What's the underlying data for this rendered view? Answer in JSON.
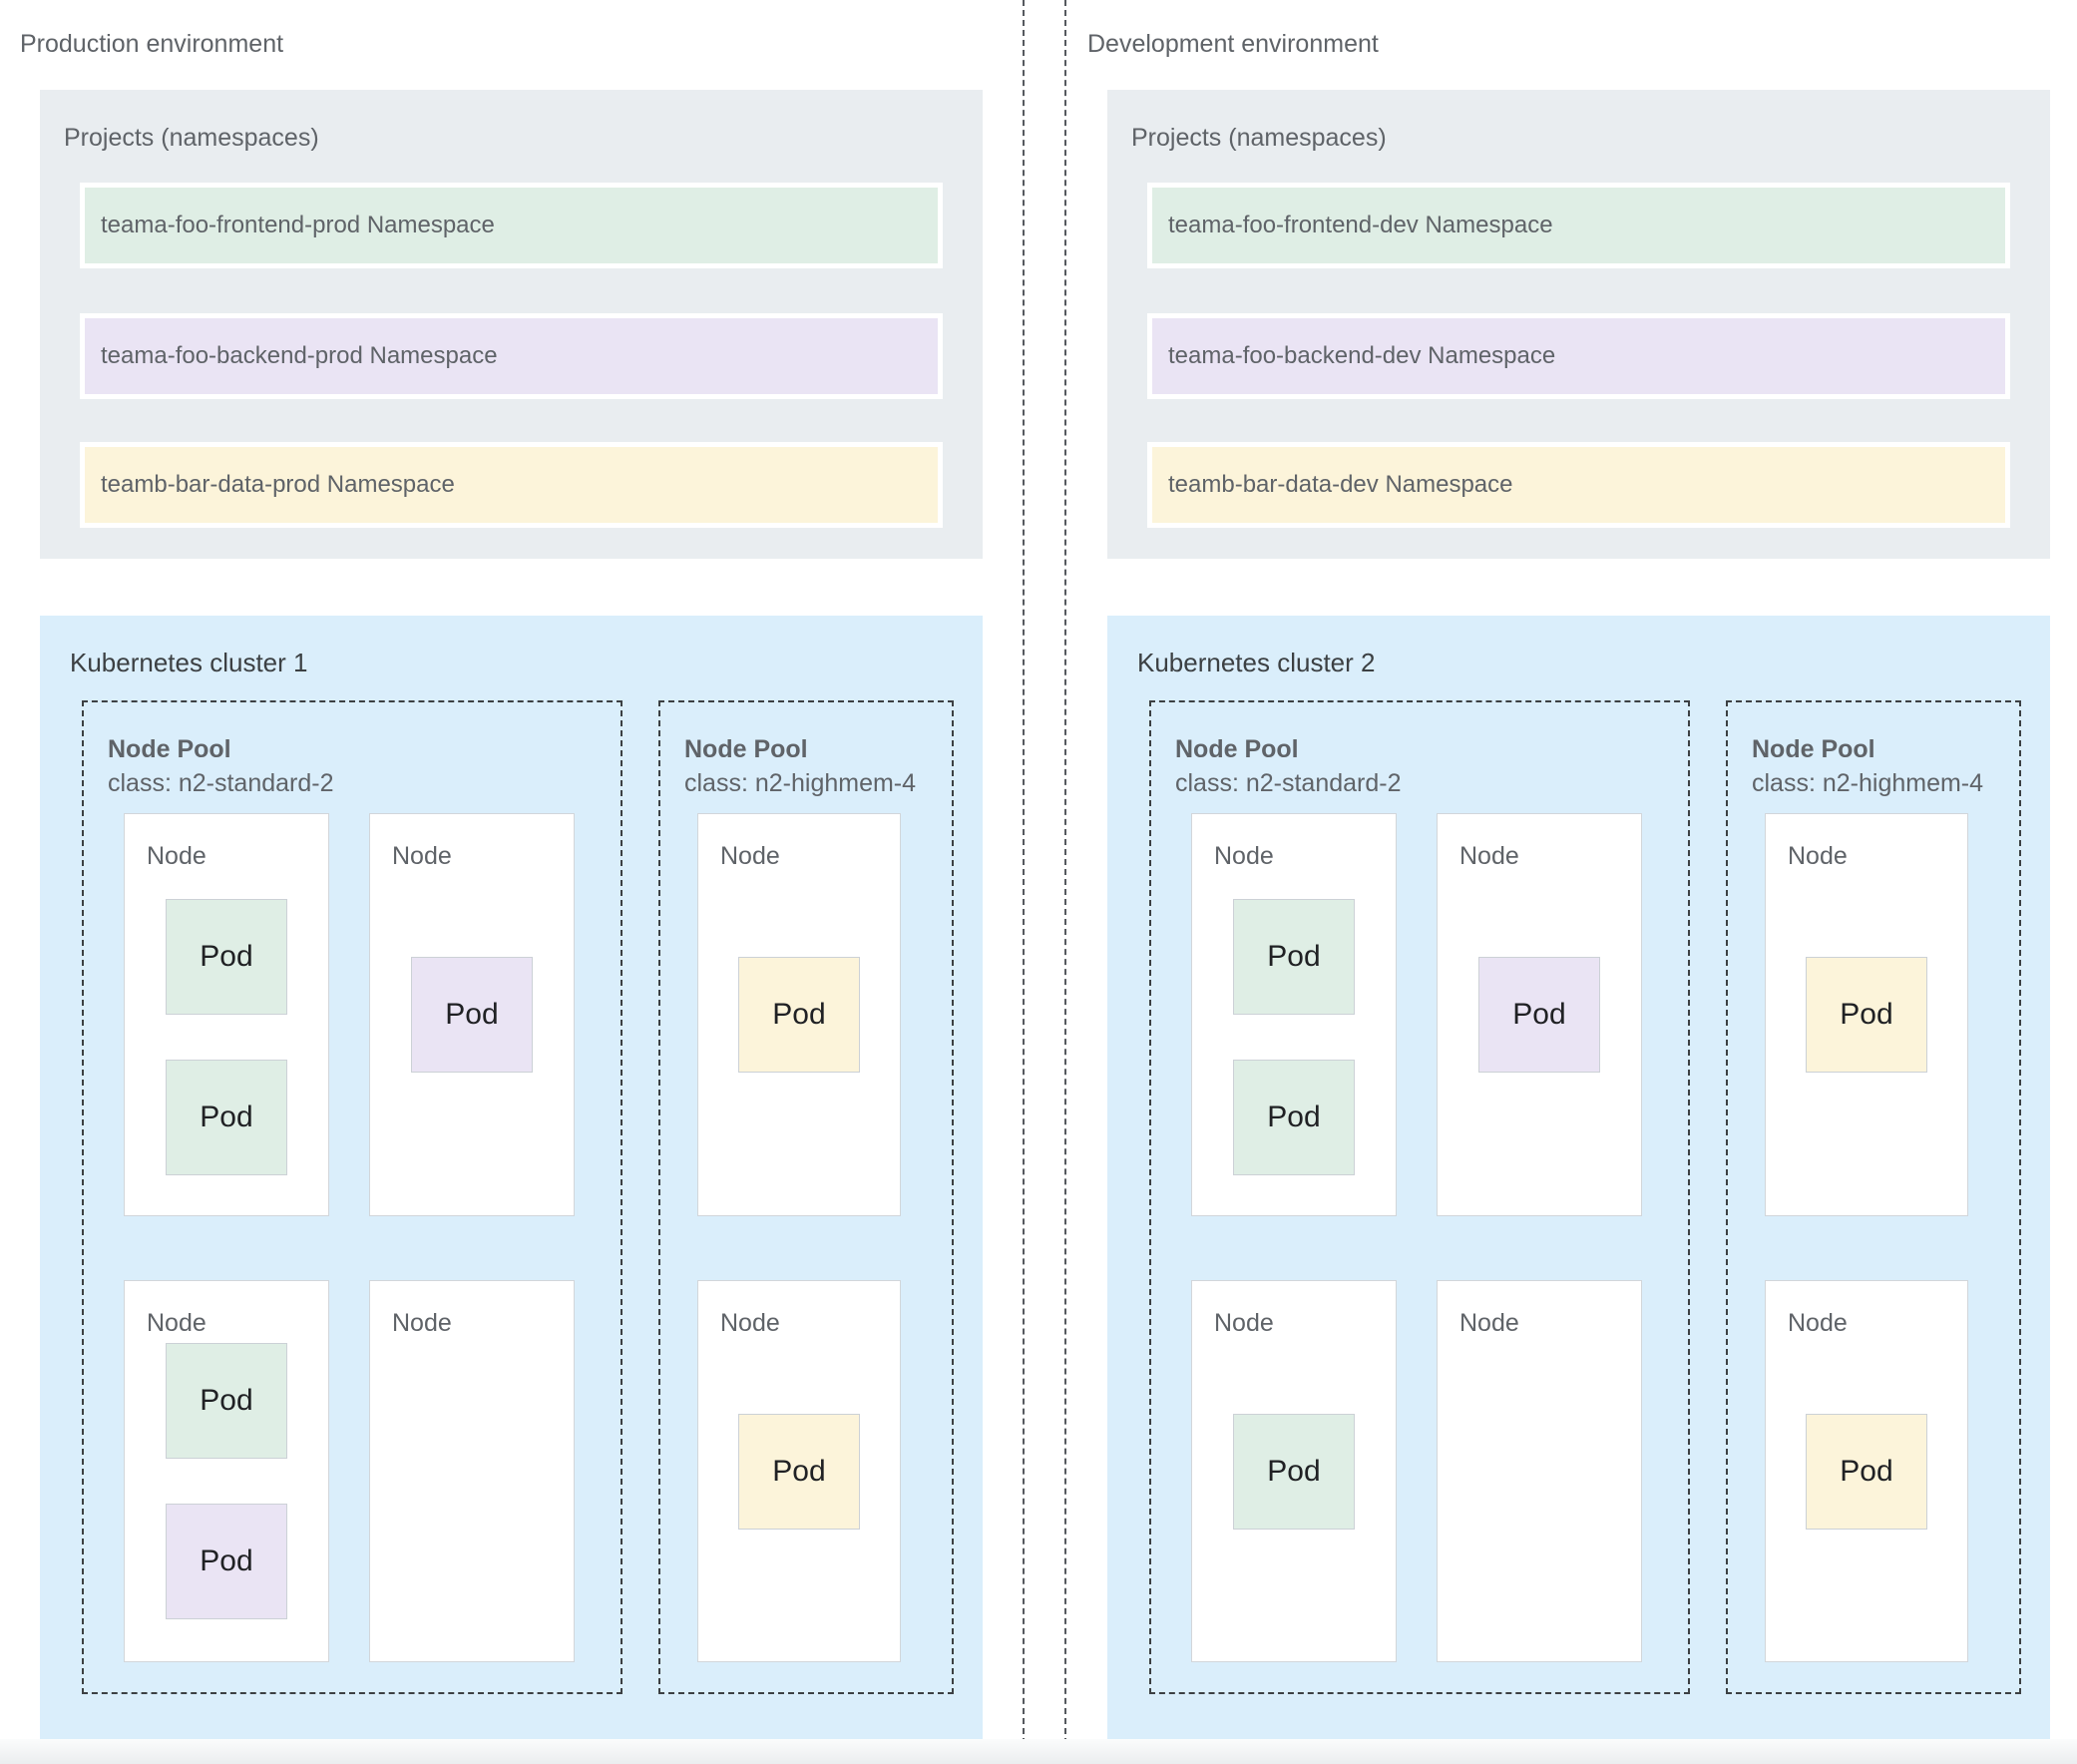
{
  "palette": {
    "projects_box_bg": "#e9edf0",
    "cluster_box_bg": "#daeefb",
    "ns_green": "#dfeee5",
    "ns_purple": "#eae4f4",
    "ns_yellow": "#fcf4da",
    "label_gray": "#5f6368",
    "title_dark": "#3c4043",
    "pod_text": "#202124",
    "dashed_border": "#3c4043",
    "node_border": "#d2d6da"
  },
  "environments": [
    {
      "title": "Production environment",
      "projects": {
        "title": "Projects (namespaces)",
        "namespaces": [
          {
            "label": "teama-foo-frontend-prod Namespace",
            "color": "green"
          },
          {
            "label": "teama-foo-backend-prod Namespace",
            "color": "purple"
          },
          {
            "label": "teamb-bar-data-prod Namespace",
            "color": "yellow"
          }
        ]
      },
      "cluster": {
        "title": "Kubernetes cluster 1",
        "node_pools": [
          {
            "name": "Node Pool",
            "class_line": "class: n2-standard-2",
            "nodes": [
              {
                "label": "Node",
                "pods": [
                  {
                    "label": "Pod",
                    "color": "green"
                  },
                  {
                    "label": "Pod",
                    "color": "green"
                  }
                ]
              },
              {
                "label": "Node",
                "pods": [
                  {
                    "label": "Pod",
                    "color": "purple"
                  }
                ]
              },
              {
                "label": "Node",
                "pods": [
                  {
                    "label": "Pod",
                    "color": "green"
                  },
                  {
                    "label": "Pod",
                    "color": "purple"
                  }
                ]
              },
              {
                "label": "Node",
                "pods": []
              }
            ]
          },
          {
            "name": "Node Pool",
            "class_line": "class: n2-highmem-4",
            "nodes": [
              {
                "label": "Node",
                "pods": [
                  {
                    "label": "Pod",
                    "color": "yellow"
                  }
                ]
              },
              {
                "label": "Node",
                "pods": [
                  {
                    "label": "Pod",
                    "color": "yellow"
                  }
                ]
              }
            ]
          }
        ]
      }
    },
    {
      "title": "Development environment",
      "projects": {
        "title": "Projects (namespaces)",
        "namespaces": [
          {
            "label": "teama-foo-frontend-dev Namespace",
            "color": "green"
          },
          {
            "label": "teama-foo-backend-dev Namespace",
            "color": "purple"
          },
          {
            "label": "teamb-bar-data-dev Namespace",
            "color": "yellow"
          }
        ]
      },
      "cluster": {
        "title": "Kubernetes cluster 2",
        "node_pools": [
          {
            "name": "Node Pool",
            "class_line": "class: n2-standard-2",
            "nodes": [
              {
                "label": "Node",
                "pods": [
                  {
                    "label": "Pod",
                    "color": "green"
                  },
                  {
                    "label": "Pod",
                    "color": "green"
                  }
                ]
              },
              {
                "label": "Node",
                "pods": [
                  {
                    "label": "Pod",
                    "color": "purple"
                  }
                ]
              },
              {
                "label": "Node",
                "pods": [
                  {
                    "label": "Pod",
                    "color": "green"
                  }
                ]
              },
              {
                "label": "Node",
                "pods": []
              }
            ]
          },
          {
            "name": "Node Pool",
            "class_line": "class: n2-highmem-4",
            "nodes": [
              {
                "label": "Node",
                "pods": [
                  {
                    "label": "Pod",
                    "color": "yellow"
                  }
                ]
              },
              {
                "label": "Node",
                "pods": [
                  {
                    "label": "Pod",
                    "color": "yellow"
                  }
                ]
              }
            ]
          }
        ]
      }
    }
  ]
}
